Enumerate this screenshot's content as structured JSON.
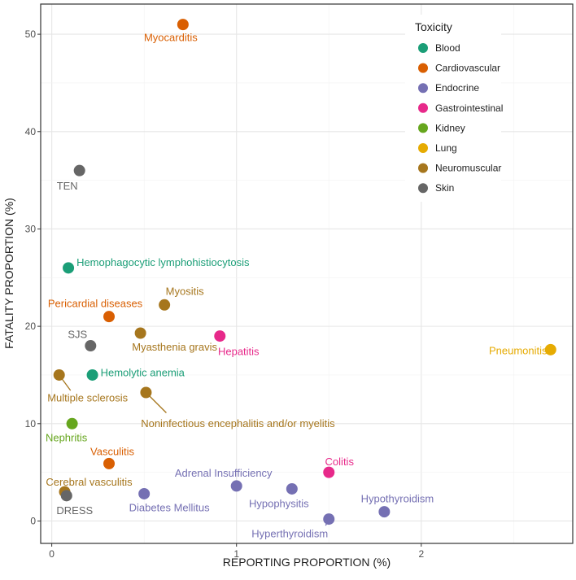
{
  "chart_data": {
    "type": "scatter",
    "title": "",
    "xlabel": "REPORTING PROPORTION (%)",
    "ylabel": "FATALITY PROPORTION (%)",
    "xlim": [
      -0.06,
      2.82
    ],
    "ylim": [
      -2.3,
      53.1
    ],
    "xticks": [
      0,
      1,
      2
    ],
    "yticks": [
      0,
      10,
      20,
      30,
      40,
      50
    ],
    "grid": true,
    "legend": {
      "title": "Toxicity",
      "placement": "top-right",
      "entries": [
        {
          "name": "Blood",
          "color": "#1B9E77"
        },
        {
          "name": "Cardiovascular",
          "color": "#D95F02"
        },
        {
          "name": "Endocrine",
          "color": "#7570B3"
        },
        {
          "name": "Gastrointestinal",
          "color": "#E7298A"
        },
        {
          "name": "Kidney",
          "color": "#66A61E"
        },
        {
          "name": "Lung",
          "color": "#E6AB02"
        },
        {
          "name": "Neuromuscular",
          "color": "#A6761D"
        },
        {
          "name": "Skin",
          "color": "#666666"
        }
      ]
    },
    "points": [
      {
        "label": "Myocarditis",
        "group": "Cardiovascular",
        "x": 0.71,
        "y": 51.0
      },
      {
        "label": "TEN",
        "group": "Skin",
        "x": 0.15,
        "y": 36.0
      },
      {
        "label": "Hemophagocytic lymphohistiocytosis",
        "group": "Blood",
        "x": 0.09,
        "y": 26.0
      },
      {
        "label": "Pericardial diseases",
        "group": "Cardiovascular",
        "x": 0.31,
        "y": 21.0
      },
      {
        "label": "Myositis",
        "group": "Neuromuscular",
        "x": 0.61,
        "y": 22.2
      },
      {
        "label": "Myasthenia gravis",
        "group": "Neuromuscular",
        "x": 0.48,
        "y": 19.3
      },
      {
        "label": "SJS",
        "group": "Skin",
        "x": 0.21,
        "y": 18.0
      },
      {
        "label": "Hepatitis",
        "group": "Gastrointestinal",
        "x": 0.91,
        "y": 19.0
      },
      {
        "label": "Hemolytic anemia",
        "group": "Blood",
        "x": 0.22,
        "y": 15.0
      },
      {
        "label": "Multiple sclerosis",
        "group": "Neuromuscular",
        "x": 0.04,
        "y": 15.0
      },
      {
        "label": "Noninfectious encephalitis and/or myelitis",
        "group": "Neuromuscular",
        "x": 0.51,
        "y": 13.2
      },
      {
        "label": "Nephritis",
        "group": "Kidney",
        "x": 0.11,
        "y": 10.0
      },
      {
        "label": "Pneumonitis",
        "group": "Lung",
        "x": 2.7,
        "y": 17.6
      },
      {
        "label": "Vasculitis",
        "group": "Cardiovascular",
        "x": 0.31,
        "y": 5.9
      },
      {
        "label": "Colitis",
        "group": "Gastrointestinal",
        "x": 1.5,
        "y": 5.0
      },
      {
        "label": "Adrenal Insufficiency",
        "group": "Endocrine",
        "x": 1.0,
        "y": 3.6
      },
      {
        "label": "Hypophysitis",
        "group": "Endocrine",
        "x": 1.3,
        "y": 3.3
      },
      {
        "label": "Cerebral vasculitis",
        "group": "Neuromuscular",
        "x": 0.07,
        "y": 3.0
      },
      {
        "label": "DRESS",
        "group": "Skin",
        "x": 0.08,
        "y": 2.6
      },
      {
        "label": "Diabetes Mellitus",
        "group": "Endocrine",
        "x": 0.5,
        "y": 2.8
      },
      {
        "label": "Hypothyroidism",
        "group": "Endocrine",
        "x": 1.8,
        "y": 0.95
      },
      {
        "label": "Hyperthyroidism",
        "group": "Endocrine",
        "x": 1.5,
        "y": 0.2
      }
    ]
  }
}
